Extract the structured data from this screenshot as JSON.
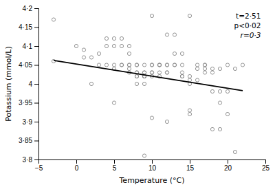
{
  "chart_data": {
    "type": "scatter",
    "xlabel": "Temperature (°C)",
    "ylabel": "Potassium (mmol/L)",
    "xlim": [
      -5,
      25
    ],
    "ylim": [
      3.8,
      4.2
    ],
    "xticks": [
      {
        "value": -5,
        "label": "−5"
      },
      0,
      5,
      10,
      15,
      20,
      25
    ],
    "yticks": [
      {
        "value": 3.8,
        "label": "3·8"
      },
      {
        "value": 3.85,
        "label": "3·85"
      },
      {
        "value": 3.9,
        "label": "3·9"
      },
      {
        "value": 3.95,
        "label": "3·95"
      },
      4,
      {
        "value": 4.05,
        "label": "4·05"
      },
      {
        "value": 4.1,
        "label": "4·1"
      },
      {
        "value": 4.15,
        "label": "4·15"
      },
      {
        "value": 4.2,
        "label": "4·2"
      }
    ],
    "grid": false,
    "annotations": [
      "t=2·51",
      "p<0·02",
      "r=0·3"
    ],
    "series": [
      {
        "type": "scatter",
        "marker": "circle",
        "color": "#888888",
        "x": [
          -3,
          -3,
          0,
          1,
          1,
          2,
          2,
          3,
          3,
          4,
          4,
          4,
          5,
          5,
          5,
          5,
          5,
          6,
          6,
          6,
          6,
          7,
          7,
          7,
          7,
          7,
          7,
          8,
          8,
          8,
          8,
          8,
          8,
          8,
          9,
          9,
          9,
          9,
          9,
          9,
          9,
          9,
          10,
          10,
          10,
          10,
          10,
          10,
          10,
          11,
          11,
          11,
          11,
          11,
          12,
          12,
          12,
          12,
          12,
          12,
          13,
          13,
          13,
          13,
          14,
          14,
          14,
          14,
          14,
          15,
          15,
          15,
          15,
          15,
          15,
          16,
          16,
          16,
          17,
          17,
          17,
          17,
          18,
          18,
          18,
          18,
          19,
          19,
          19,
          19,
          20,
          20,
          20,
          21,
          21,
          22
        ],
        "values": [
          4.17,
          4.06,
          4.1,
          4.09,
          4.07,
          4.07,
          4.0,
          4.05,
          4.08,
          4.12,
          4.05,
          4.1,
          4.05,
          4.04,
          4.1,
          4.12,
          3.95,
          4.05,
          4.1,
          4.12,
          4.05,
          4.04,
          4.05,
          4.05,
          4.03,
          4.1,
          4.08,
          4.05,
          4.03,
          4.02,
          4.05,
          4.03,
          4.0,
          4.02,
          4.02,
          4.03,
          4.02,
          4.03,
          4.02,
          4.05,
          4.0,
          3.81,
          4.05,
          4.03,
          4.02,
          4.05,
          4.03,
          3.91,
          4.18,
          4.05,
          4.03,
          4.05,
          4.02,
          4.05,
          4.05,
          4.03,
          4.13,
          4.05,
          4.03,
          3.9,
          4.08,
          4.05,
          4.13,
          4.05,
          4.08,
          4.02,
          4.05,
          4.03,
          4.02,
          4.18,
          4.02,
          4.01,
          4.0,
          3.93,
          3.92,
          4.05,
          4.01,
          4.04,
          4.05,
          4.04,
          4.03,
          4.05,
          4.04,
          4.03,
          3.98,
          3.88,
          4.04,
          3.95,
          3.98,
          3.88,
          4.05,
          3.98,
          3.92,
          4.04,
          3.82,
          4.05
        ]
      },
      {
        "type": "line",
        "line_style": "solid",
        "color": "#000000",
        "x": [
          -3,
          22
        ],
        "values": [
          4.062,
          3.982
        ]
      }
    ]
  }
}
